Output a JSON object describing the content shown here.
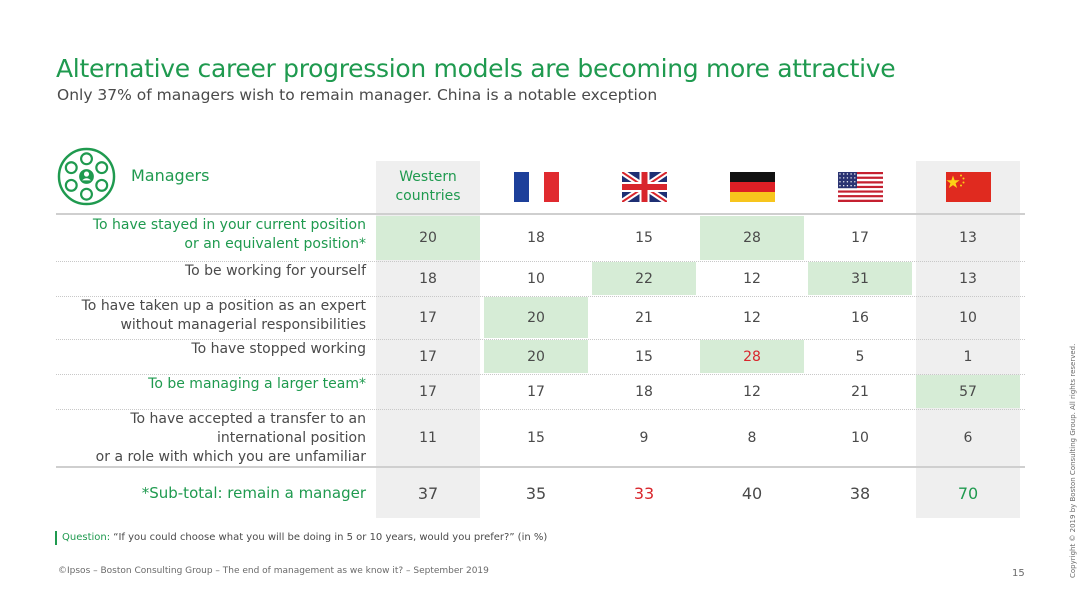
{
  "title": "Alternative career progression models are becoming more attractive",
  "subtitle": "Only 37% of managers wish to remain manager. China is a notable exception",
  "segment_label": "Managers",
  "colors": {
    "accent": "#1f9a4f",
    "highlight": "#d6ecd6",
    "emphasis_red": "#d9262c",
    "column_shade": "#efefef"
  },
  "icons": {
    "segment": "managers-group-icon"
  },
  "chart_data": {
    "type": "table",
    "columns": [
      {
        "label": "Western countries",
        "lines": [
          "Western",
          "countries"
        ]
      },
      {
        "flag": "france-flag-icon"
      },
      {
        "flag": "uk-flag-icon"
      },
      {
        "flag": "germany-flag-icon"
      },
      {
        "flag": "usa-flag-icon"
      },
      {
        "flag": "china-flag-icon"
      }
    ],
    "rows": [
      {
        "lines": [
          "To have stayed in your current position",
          "or an equivalent position*"
        ],
        "green": true,
        "values": [
          20,
          18,
          15,
          28,
          17,
          13
        ],
        "highlight": [
          0,
          3
        ],
        "red": []
      },
      {
        "lines": [
          "To be working for yourself"
        ],
        "green": false,
        "values": [
          18,
          10,
          22,
          12,
          31,
          13
        ],
        "highlight": [
          2,
          4
        ],
        "red": []
      },
      {
        "lines": [
          "To have taken up a position as an expert",
          "without managerial responsibilities"
        ],
        "green": false,
        "values": [
          17,
          20,
          21,
          12,
          16,
          10
        ],
        "highlight": [
          1
        ],
        "red": []
      },
      {
        "lines": [
          "To have stopped working"
        ],
        "green": false,
        "values": [
          17,
          20,
          15,
          28,
          5,
          1
        ],
        "highlight": [
          1,
          3
        ],
        "red": [
          3
        ]
      },
      {
        "lines": [
          "To be managing a larger team*"
        ],
        "green": true,
        "values": [
          17,
          17,
          18,
          12,
          21,
          57
        ],
        "highlight": [
          5
        ],
        "red": []
      },
      {
        "lines": [
          "To have accepted a transfer to an",
          "international position",
          "or a role with which you are unfamiliar"
        ],
        "green": false,
        "values": [
          11,
          15,
          9,
          8,
          10,
          6
        ],
        "highlight": [],
        "red": []
      }
    ],
    "subtotal": {
      "label": "*Sub-total: remain a manager",
      "values": [
        37,
        35,
        33,
        40,
        38,
        70
      ],
      "red": [
        2
      ],
      "green": [
        5
      ]
    }
  },
  "question_label": "Question:",
  "question_text": "“If you could choose what you will be doing in 5 or 10 years, would you prefer?” (in %)",
  "footer": "©Ipsos – Boston Consulting Group – The end of management as we know it? – September 2019",
  "page_number": "15",
  "copyright": "Copyright © 2019 by Boston Consulting Group. All rights reserved."
}
